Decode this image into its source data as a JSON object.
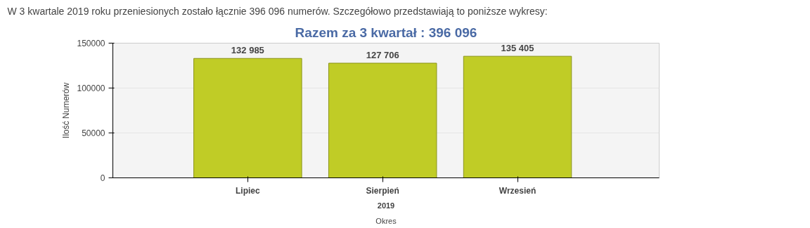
{
  "chart_data": {
    "type": "bar",
    "title": "Razem za 3 kwartał : 396 096",
    "annotations": [
      "W 3 kwartale 2019 roku przeniesionych zostało łącznie  396 096 numerów. Szczegółowo przedstawiają to poniższe wykresy:",
      "2019"
    ],
    "xlabel": "Okres",
    "ylabel": "Ilość Numerów",
    "categories": [
      "Lipiec",
      "Sierpień",
      "Wrzesień"
    ],
    "values": [
      132985,
      127706,
      135405
    ],
    "value_labels": [
      "132 985",
      "127 706",
      "135 405"
    ],
    "color": "#c0cc26",
    "ylim": [
      0,
      150000
    ],
    "yticks": [
      0,
      50000,
      100000,
      150000
    ],
    "grid": "y"
  }
}
